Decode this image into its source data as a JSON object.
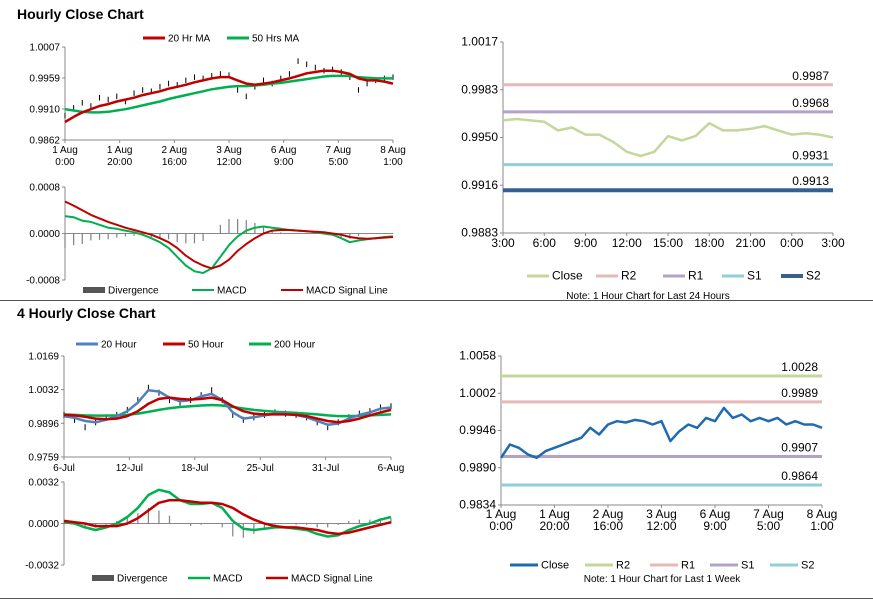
{
  "sections": {
    "hourly_title": "Hourly Close Chart",
    "four_hourly_title": "4 Hourly Close Chart"
  },
  "colors": {
    "ma20": "#c00000",
    "ma50": "#00b050",
    "h20": "#4f81bd",
    "h50": "#c00000",
    "h200": "#00b050",
    "macd": "#00b050",
    "signal": "#c00000",
    "divergence": "#808080",
    "close_light": "#c4d79b",
    "close_dark": "#1f6bb0",
    "r2": "#c4d79b",
    "r1": "#e6b9b8",
    "r1_top": "#e6b9b8",
    "r2_top": "#e6b9b8",
    "s1": "#b3a2c7",
    "s1_light": "#92cddc",
    "s2": "#376092",
    "pivot_purple": "#b3a2c7"
  },
  "chart_data": [
    {
      "id": "hourly_price",
      "type": "line",
      "title": "",
      "legend": [
        "20 Hr MA",
        "50 Hrs MA"
      ],
      "ylim": [
        0.9862,
        1.0007
      ],
      "yticks": [
        "1.0007",
        "0.9959",
        "0.9910",
        "0.9862"
      ],
      "xticks": [
        [
          "1 Aug",
          "0:00"
        ],
        [
          "1 Aug",
          "20:00"
        ],
        [
          "2 Aug",
          "16:00"
        ],
        [
          "3 Aug",
          "12:00"
        ],
        [
          "6 Aug",
          "9:00"
        ],
        [
          "7 Aug",
          "5:00"
        ],
        [
          "8 Aug",
          "1:00"
        ]
      ],
      "close": [
        0.99,
        0.9912,
        0.992,
        0.9915,
        0.9928,
        0.9925,
        0.993,
        0.9922,
        0.9935,
        0.994,
        0.9938,
        0.9945,
        0.995,
        0.9948,
        0.9955,
        0.996,
        0.9958,
        0.9962,
        0.9965,
        0.9963,
        0.994,
        0.993,
        0.9945,
        0.9955,
        0.995,
        0.9958,
        0.9965,
        0.9985,
        0.998,
        0.9975,
        0.997,
        0.9972,
        0.9968,
        0.996,
        0.994,
        0.995,
        0.9955,
        0.9958,
        0.996
      ],
      "ma20": [
        0.989,
        0.9898,
        0.9905,
        0.991,
        0.9915,
        0.9918,
        0.9922,
        0.9925,
        0.9928,
        0.9932,
        0.9935,
        0.9938,
        0.9942,
        0.9945,
        0.9948,
        0.9952,
        0.9955,
        0.9958,
        0.996,
        0.996,
        0.9955,
        0.995,
        0.9948,
        0.995,
        0.9952,
        0.9955,
        0.9958,
        0.9962,
        0.9966,
        0.9968,
        0.997,
        0.997,
        0.9968,
        0.9965,
        0.9958,
        0.9955,
        0.9955,
        0.9953,
        0.995
      ],
      "ma50": [
        0.991,
        0.9908,
        0.9906,
        0.9905,
        0.9905,
        0.9906,
        0.9908,
        0.991,
        0.9913,
        0.9916,
        0.9919,
        0.9922,
        0.9926,
        0.9929,
        0.9932,
        0.9935,
        0.9938,
        0.9941,
        0.9943,
        0.9945,
        0.9946,
        0.9946,
        0.9947,
        0.9948,
        0.995,
        0.9951,
        0.9953,
        0.9955,
        0.9957,
        0.9959,
        0.9961,
        0.9962,
        0.9962,
        0.9962,
        0.996,
        0.9959,
        0.9958,
        0.9958,
        0.9958
      ]
    },
    {
      "id": "hourly_macd",
      "type": "line",
      "legend": [
        "Divergence",
        "MACD",
        "MACD Signal Line"
      ],
      "ylim": [
        -0.0008,
        0.0008
      ],
      "yticks": [
        "0.0008",
        "0.0000",
        "-0.0008"
      ],
      "macd": [
        0.0003,
        0.00028,
        0.00022,
        0.0002,
        0.00015,
        0.0001,
        8e-05,
        5e-05,
        2e-05,
        -2e-05,
        -8e-05,
        -0.00015,
        -0.00025,
        -0.0004,
        -0.00055,
        -0.00065,
        -0.00068,
        -0.0006,
        -0.0004,
        -0.0002,
        -5e-05,
        5e-05,
        0.0001,
        0.00012,
        0.0001,
        8e-05,
        6e-05,
        5e-05,
        4e-05,
        2e-05,
        0.0,
        -2e-05,
        -8e-05,
        -0.00015,
        -0.00012,
        -0.0001,
        -8e-05,
        -6e-05,
        -5e-05
      ],
      "signal": [
        0.00055,
        0.00048,
        0.0004,
        0.00032,
        0.00026,
        0.0002,
        0.00015,
        0.0001,
        6e-05,
        2e-05,
        -2e-05,
        -8e-05,
        -0.00015,
        -0.00025,
        -0.00038,
        -0.00048,
        -0.00055,
        -0.0006,
        -0.00055,
        -0.00045,
        -0.0003,
        -0.00018,
        -8e-05,
        0.0,
        5e-05,
        6e-05,
        6e-05,
        5e-05,
        4e-05,
        3e-05,
        2e-05,
        0.0,
        -2e-05,
        -6e-05,
        -8e-05,
        -9e-05,
        -8e-05,
        -7e-05,
        -6e-05
      ],
      "divergence": [
        -0.00025,
        -0.0002,
        -0.00018,
        -0.00012,
        -0.00011,
        -0.0001,
        -7e-05,
        -5e-05,
        -4e-05,
        -4e-05,
        -6e-05,
        -7e-05,
        -0.0001,
        -0.00015,
        -0.00017,
        -0.00017,
        -0.00013,
        0.0,
        0.00015,
        0.00025,
        0.00025,
        0.00023,
        0.00018,
        0.00012,
        5e-05,
        2e-05,
        0.0,
        0.0,
        0.0,
        -1e-05,
        -2e-05,
        -2e-05,
        -6e-05,
        -9e-05,
        -4e-05,
        -1e-05,
        0.0,
        1e-05,
        1e-05
      ]
    },
    {
      "id": "hourly_pivots",
      "type": "line",
      "ylim": [
        0.9883,
        1.0017
      ],
      "yticks": [
        "1.0017",
        "0.9983",
        "0.9950",
        "0.9916",
        "0.9883"
      ],
      "xticks": [
        "3:00",
        "6:00",
        "9:00",
        "12:00",
        "15:00",
        "18:00",
        "21:00",
        "0:00",
        "3:00"
      ],
      "legend": [
        "Close",
        "R2",
        "R1",
        "S1",
        "S2"
      ],
      "note": "Note: 1 Hour Chart for Last 24 Hours",
      "levels": {
        "R2": 0.9987,
        "R1": 0.9968,
        "S1": 0.9931,
        "S2": 0.9913
      },
      "level_labels": {
        "R2": "0.9987",
        "R1": "0.9968",
        "S1": "0.9931",
        "S2": "0.9913"
      },
      "close": [
        0.9962,
        0.9963,
        0.9962,
        0.9961,
        0.9955,
        0.9957,
        0.9952,
        0.9952,
        0.9947,
        0.994,
        0.9937,
        0.994,
        0.9951,
        0.9948,
        0.9951,
        0.996,
        0.9955,
        0.9955,
        0.9956,
        0.9958,
        0.9955,
        0.9952,
        0.9953,
        0.9952,
        0.995
      ]
    },
    {
      "id": "four_hourly_price",
      "type": "line",
      "legend": [
        "20 Hour",
        "50 Hour",
        "200 Hour"
      ],
      "ylim": [
        0.9759,
        1.0169
      ],
      "yticks": [
        "1.0169",
        "1.0032",
        "0.9896",
        "0.9759"
      ],
      "xticks": [
        "6-Jul",
        "12-Jul",
        "18-Jul",
        "25-Jul",
        "31-Jul",
        "6-Aug"
      ],
      "close": [
        0.993,
        0.991,
        0.988,
        0.99,
        0.992,
        0.993,
        0.995,
        0.999,
        1.004,
        1.002,
        0.999,
        0.998,
        0.999,
        1.001,
        1.003,
        0.999,
        0.993,
        0.991,
        0.992,
        0.993,
        0.994,
        0.9935,
        0.993,
        0.992,
        0.99,
        0.988,
        0.99,
        0.992,
        0.9935,
        0.9945,
        0.996,
        0.9965
      ],
      "h20": [
        0.9925,
        0.9918,
        0.9905,
        0.99,
        0.991,
        0.9925,
        0.9945,
        0.998,
        1.003,
        1.0025,
        1.0,
        0.9985,
        0.999,
        1.0005,
        1.0015,
        0.999,
        0.994,
        0.9915,
        0.992,
        0.9928,
        0.9935,
        0.9935,
        0.993,
        0.992,
        0.9905,
        0.989,
        0.9895,
        0.9915,
        0.993,
        0.994,
        0.9955,
        0.996
      ],
      "h50": [
        0.993,
        0.9928,
        0.9922,
        0.9915,
        0.9912,
        0.9915,
        0.9925,
        0.9945,
        0.9975,
        0.9995,
        1.0,
        0.9995,
        0.9992,
        0.9995,
        1.0,
        0.999,
        0.9965,
        0.9945,
        0.9935,
        0.9932,
        0.9932,
        0.9932,
        0.993,
        0.9925,
        0.9915,
        0.9905,
        0.99,
        0.9905,
        0.9915,
        0.9928,
        0.994,
        0.995
      ],
      "h200": [
        0.9932,
        0.993,
        0.9928,
        0.9927,
        0.9927,
        0.9928,
        0.993,
        0.9935,
        0.9942,
        0.995,
        0.9957,
        0.9962,
        0.9965,
        0.9968,
        0.997,
        0.9968,
        0.9962,
        0.9956,
        0.995,
        0.9946,
        0.9943,
        0.994,
        0.9938,
        0.9935,
        0.9932,
        0.9928,
        0.9925,
        0.9925,
        0.9926,
        0.9928,
        0.993,
        0.9932
      ]
    },
    {
      "id": "four_hourly_macd",
      "type": "line",
      "legend": [
        "Divergence",
        "MACD",
        "MACD Signal Line"
      ],
      "ylim": [
        -0.0032,
        0.0032
      ],
      "yticks": [
        "0.0032",
        "0.0000",
        "-0.0032"
      ],
      "macd": [
        0.0001,
        0.0,
        -0.0003,
        -0.0005,
        -0.0003,
        0.0,
        0.0005,
        0.0012,
        0.0022,
        0.0026,
        0.0024,
        0.0018,
        0.0015,
        0.0015,
        0.0016,
        0.0012,
        0.0002,
        -0.0004,
        -0.0005,
        -0.0004,
        -0.0003,
        -0.0003,
        -0.0004,
        -0.0005,
        -0.0008,
        -0.001,
        -0.0009,
        -0.0005,
        -0.0002,
        0.0,
        0.0003,
        0.0005
      ],
      "signal": [
        0.0002,
        0.0001,
        0.0,
        -0.0002,
        -0.0002,
        -0.0002,
        0.0,
        0.0004,
        0.001,
        0.0016,
        0.0018,
        0.0018,
        0.0017,
        0.0016,
        0.0016,
        0.0015,
        0.0012,
        0.0007,
        0.0003,
        0.0,
        -0.0002,
        -0.0003,
        -0.0003,
        -0.0004,
        -0.0005,
        -0.0007,
        -0.0008,
        -0.0007,
        -0.0005,
        -0.0003,
        -0.0001,
        0.0001
      ],
      "divergence": [
        -0.0001,
        -0.0001,
        -0.0003,
        -0.0003,
        -0.0001,
        0.0002,
        0.0005,
        0.0008,
        0.0012,
        0.001,
        0.0006,
        0.0,
        -0.0002,
        -0.0001,
        0.0,
        -0.0003,
        -0.001,
        -0.0011,
        -0.0008,
        -0.0004,
        -0.0001,
        0.0,
        -0.0001,
        -0.0001,
        -0.0003,
        -0.0003,
        -0.0001,
        0.0002,
        0.0003,
        0.0003,
        0.0004,
        0.0004
      ]
    },
    {
      "id": "four_hourly_pivots",
      "type": "line",
      "ylim": [
        0.9834,
        1.0058
      ],
      "yticks": [
        "1.0058",
        "1.0002",
        "0.9946",
        "0.9890",
        "0.9834"
      ],
      "xticks": [
        [
          "1 Aug",
          "0:00"
        ],
        [
          "1 Aug",
          "20:00"
        ],
        [
          "2 Aug",
          "16:00"
        ],
        [
          "3 Aug",
          "12:00"
        ],
        [
          "6 Aug",
          "9:00"
        ],
        [
          "7 Aug",
          "5:00"
        ],
        [
          "8 Aug",
          "1:00"
        ]
      ],
      "legend": [
        "Close",
        "R2",
        "R1",
        "S1",
        "S2"
      ],
      "note": "Note: 1 Hour Chart for Last 1 Week",
      "levels": {
        "R2": 1.0028,
        "R1": 0.9989,
        "S1": 0.9907,
        "S2": 0.9864
      },
      "level_labels": {
        "R2": "1.0028",
        "R1": "0.9989",
        "S1": "0.9907",
        "S2": "0.9864"
      },
      "close": [
        0.9905,
        0.9925,
        0.992,
        0.991,
        0.9905,
        0.9915,
        0.992,
        0.9925,
        0.993,
        0.9935,
        0.995,
        0.994,
        0.9955,
        0.996,
        0.9958,
        0.9962,
        0.996,
        0.9955,
        0.996,
        0.993,
        0.9945,
        0.9955,
        0.995,
        0.9965,
        0.996,
        0.998,
        0.9965,
        0.997,
        0.996,
        0.9965,
        0.996,
        0.9965,
        0.9955,
        0.996,
        0.9955,
        0.9955,
        0.995
      ]
    }
  ]
}
